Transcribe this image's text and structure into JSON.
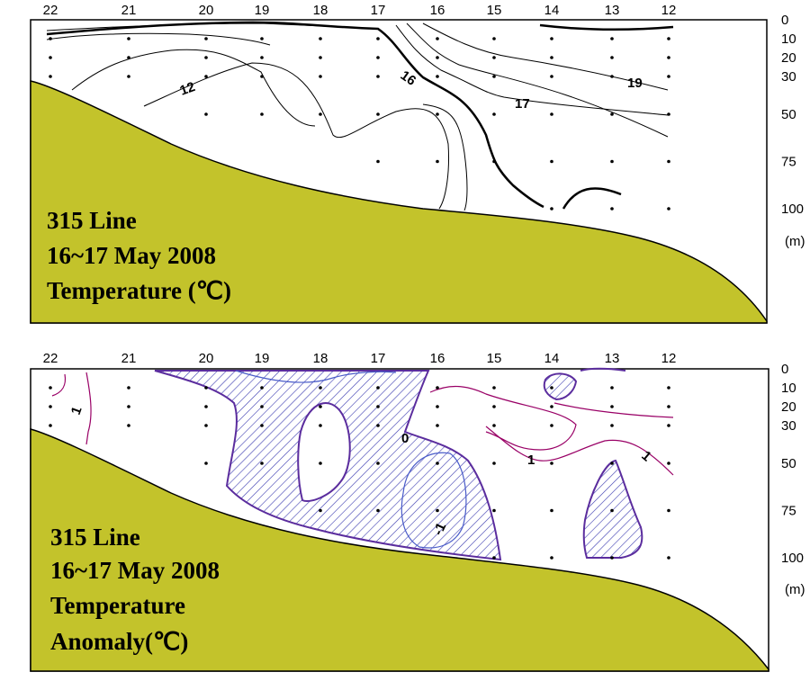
{
  "colors": {
    "seabed": "#c3c32b",
    "contour": "#000000",
    "anomaly_positive": "#990066",
    "anomaly_negative": "#5b2d9e",
    "hatch": "#3b3bb0"
  },
  "chart_data": [
    {
      "type": "contour",
      "stations": [
        "22",
        "21",
        "20",
        "19",
        "18",
        "17",
        "16",
        "15",
        "14",
        "13",
        "12"
      ],
      "depths": [
        "0",
        "10",
        "20",
        "30",
        "50",
        "75",
        "100"
      ],
      "depth_unit": "(m)",
      "caption": [
        "315 Line",
        "16~17 May 2008",
        "Temperature (℃)"
      ],
      "contour_labels": [
        "12",
        "16",
        "17",
        "19"
      ],
      "seabed": true
    },
    {
      "type": "contour",
      "stations": [
        "22",
        "21",
        "20",
        "19",
        "18",
        "17",
        "16",
        "15",
        "14",
        "13",
        "12"
      ],
      "depths": [
        "0",
        "10",
        "20",
        "30",
        "50",
        "75",
        "100"
      ],
      "depth_unit": "(m)",
      "caption": [
        "315 Line",
        "16~17 May 2008",
        "Temperature",
        "Anomaly(℃)"
      ],
      "contour_labels": [
        "1",
        "0",
        "-1",
        "1",
        "1"
      ],
      "negative_regions_hatched": true,
      "seabed": true
    }
  ]
}
